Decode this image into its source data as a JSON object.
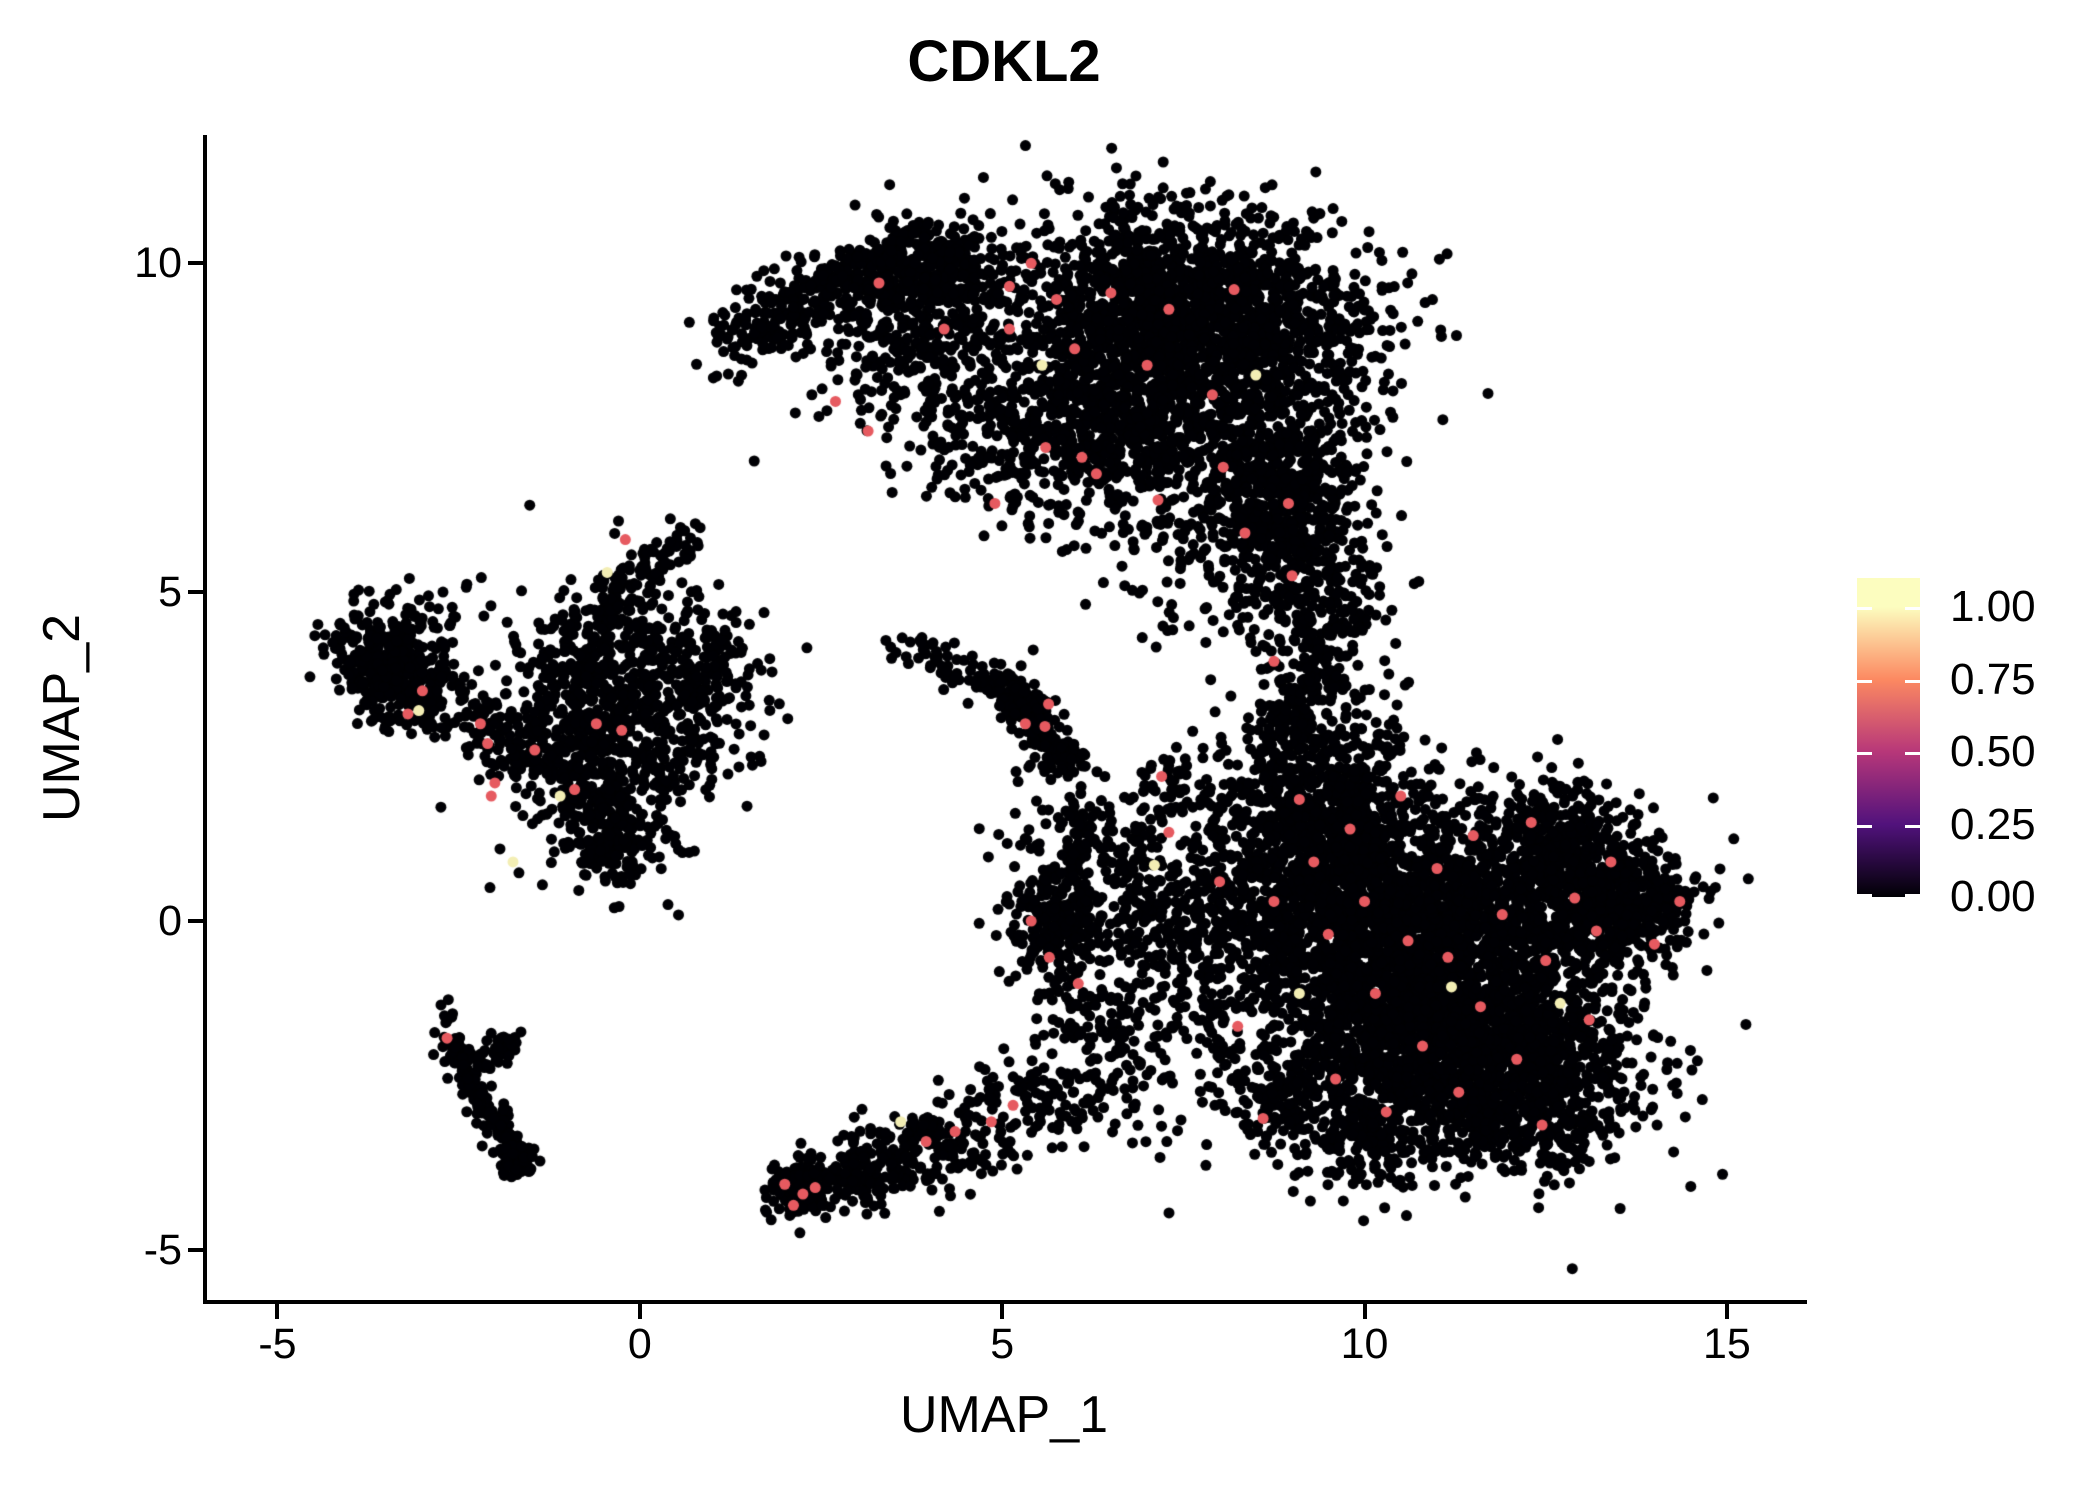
{
  "title": "CDKL2",
  "axes": {
    "x": {
      "label": "UMAP_1",
      "tick_labels": [
        "-5",
        "0",
        "5",
        "10",
        "15"
      ],
      "tick_values": [
        -5,
        0,
        5,
        10,
        15
      ],
      "range": [
        -6.0,
        16.05
      ]
    },
    "y": {
      "label": "UMAP_2",
      "tick_labels": [
        "-5",
        "0",
        "5",
        "10"
      ],
      "tick_values": [
        -5,
        0,
        5,
        10
      ],
      "range": [
        -5.79,
        11.95
      ]
    }
  },
  "legend": {
    "tick_labels": [
      "1.00",
      "0.75",
      "0.50",
      "0.25",
      "0.00"
    ],
    "tick_values": [
      1.0,
      0.75,
      0.5,
      0.25,
      0.0
    ],
    "bar_value_range": [
      0,
      1.1
    ],
    "colormap": "magma",
    "stops": [
      {
        "v": 0.0,
        "color": "#000004"
      },
      {
        "v": 0.25,
        "color": "#51127c"
      },
      {
        "v": 0.5,
        "color": "#b73779"
      },
      {
        "v": 0.75,
        "color": "#fc8961"
      },
      {
        "v": 1.0,
        "color": "#fcfdbf"
      }
    ]
  },
  "chart_data": {
    "type": "scatter",
    "title": "CDKL2",
    "xlabel": "UMAP_1",
    "ylabel": "UMAP_2",
    "xlim": [
      -6.0,
      16.05
    ],
    "ylim": [
      -5.79,
      11.95
    ],
    "grid": false,
    "legend_position": "right",
    "point_radius_px": 5.5,
    "base_color": "#000004",
    "seed": 42,
    "clusters": [
      {
        "id": "top-core-upper",
        "kind": "blob",
        "c": [
          7.6,
          9.3
        ],
        "sd": [
          1.25,
          0.8
        ],
        "rot": -8,
        "n": 1600
      },
      {
        "id": "top-core-lower",
        "kind": "blob",
        "c": [
          6.7,
          7.7
        ],
        "sd": [
          1.05,
          0.85
        ],
        "n": 1000
      },
      {
        "id": "top-right-lobe",
        "kind": "blob",
        "c": [
          8.8,
          6.9
        ],
        "sd": [
          0.65,
          0.9
        ],
        "n": 420
      },
      {
        "id": "top-left-lobe",
        "kind": "blob",
        "c": [
          4.1,
          9.5
        ],
        "sd": [
          0.65,
          0.55
        ],
        "n": 360
      },
      {
        "id": "top-arc-tail",
        "kind": "streak",
        "from": [
          1.15,
          8.65
        ],
        "to": [
          3.0,
          9.9
        ],
        "n": 230,
        "jitter": 0.28
      },
      {
        "id": "top-arc-join",
        "kind": "streak",
        "from": [
          2.95,
          9.85
        ],
        "to": [
          4.4,
          10.15
        ],
        "n": 190,
        "jitter": 0.3
      },
      {
        "id": "top-under-arc",
        "kind": "blob",
        "c": [
          3.6,
          8.3
        ],
        "sd": [
          0.65,
          0.6
        ],
        "n": 140
      },
      {
        "id": "top-under-arc2",
        "kind": "blob",
        "c": [
          4.7,
          7.5
        ],
        "sd": [
          0.55,
          0.65
        ],
        "n": 120
      },
      {
        "id": "arm-down",
        "kind": "streak",
        "from": [
          8.65,
          6.8
        ],
        "to": [
          9.35,
          4.3
        ],
        "n": 420,
        "jitter": 0.5
      },
      {
        "id": "arm-chain",
        "kind": "streak",
        "from": [
          9.35,
          4.25
        ],
        "to": [
          9.1,
          2.9
        ],
        "n": 110,
        "jitter": 0.3
      },
      {
        "id": "gap-sparse",
        "kind": "blob",
        "c": [
          7.7,
          5.3
        ],
        "sd": [
          0.75,
          0.75
        ],
        "n": 70
      },
      {
        "id": "arm-side-sparse",
        "kind": "blob",
        "c": [
          10.0,
          5.1
        ],
        "sd": [
          0.3,
          0.4
        ],
        "n": 25
      },
      {
        "id": "left-blob",
        "kind": "blob",
        "c": [
          -3.35,
          3.95
        ],
        "sd": [
          0.42,
          0.45
        ],
        "n": 300
      },
      {
        "id": "left-blob-streak",
        "kind": "streak",
        "from": [
          -4.15,
          4.35
        ],
        "to": [
          -2.6,
          3.05
        ],
        "n": 130,
        "jitter": 0.27
      },
      {
        "id": "leftmain-core",
        "kind": "blob",
        "c": [
          -0.35,
          2.6
        ],
        "sd": [
          0.6,
          0.8
        ],
        "n": 480
      },
      {
        "id": "leftmain-right-lobe",
        "kind": "blob",
        "c": [
          0.55,
          3.9
        ],
        "sd": [
          0.55,
          0.6
        ],
        "n": 260
      },
      {
        "id": "leftmain-up-arc",
        "kind": "streak",
        "from": [
          -1.15,
          3.5
        ],
        "to": [
          -0.35,
          4.9
        ],
        "n": 140,
        "jitter": 0.3
      },
      {
        "id": "leftmain-top-chain",
        "kind": "streak",
        "from": [
          -0.35,
          4.9
        ],
        "to": [
          0.62,
          5.85
        ],
        "n": 80,
        "jitter": 0.18
      },
      {
        "id": "leftmain-bridge",
        "kind": "streak",
        "from": [
          -2.35,
          3.1
        ],
        "to": [
          -1.1,
          2.45
        ],
        "n": 140,
        "jitter": 0.33
      },
      {
        "id": "leftmain-tail",
        "kind": "streak",
        "from": [
          -0.75,
          1.9
        ],
        "to": [
          -0.25,
          0.85
        ],
        "n": 150,
        "jitter": 0.28
      },
      {
        "id": "leftmain-halo",
        "kind": "blob",
        "c": [
          -0.4,
          3.1
        ],
        "sd": [
          1.15,
          1.15
        ],
        "n": 170
      },
      {
        "id": "mid-streak",
        "kind": "streak",
        "from": [
          5.0,
          3.6
        ],
        "to": [
          6.0,
          2.3
        ],
        "n": 200,
        "jitter": 0.17
      },
      {
        "id": "mid-streak-knot",
        "kind": "blob",
        "c": [
          5.35,
          3.25
        ],
        "sd": [
          0.17,
          0.17
        ],
        "n": 70
      },
      {
        "id": "mid-bridge",
        "kind": "streak",
        "from": [
          3.5,
          4.2
        ],
        "to": [
          4.9,
          3.65
        ],
        "n": 55,
        "jitter": 0.14
      },
      {
        "id": "mid-right-group",
        "kind": "blob",
        "c": [
          7.3,
          2.1
        ],
        "sd": [
          0.25,
          0.3
        ],
        "n": 45
      },
      {
        "id": "mid-blob",
        "kind": "blob",
        "c": [
          5.75,
          -0.1
        ],
        "sd": [
          0.32,
          0.45
        ],
        "n": 240
      },
      {
        "id": "mid-blob-uptail",
        "kind": "streak",
        "from": [
          5.95,
          0.6
        ],
        "to": [
          6.15,
          1.7
        ],
        "n": 45,
        "jitter": 0.15
      },
      {
        "id": "mid-blob-halo",
        "kind": "blob",
        "c": [
          6.6,
          -0.1
        ],
        "sd": [
          0.5,
          0.8
        ],
        "n": 90
      },
      {
        "id": "mid-upper-sparse",
        "kind": "blob",
        "c": [
          7.1,
          0.6
        ],
        "sd": [
          0.5,
          0.5
        ],
        "n": 70
      },
      {
        "id": "mid-trail-up",
        "kind": "blob",
        "c": [
          5.8,
          1.4
        ],
        "sd": [
          0.4,
          0.5
        ],
        "n": 40
      },
      {
        "id": "mid-trail-down",
        "kind": "blob",
        "c": [
          6.3,
          -1.6
        ],
        "sd": [
          0.35,
          0.5
        ],
        "n": 50
      },
      {
        "id": "bottom-arm",
        "kind": "streak",
        "from": [
          2.05,
          -4.25
        ],
        "to": [
          6.3,
          -2.4
        ],
        "n": 420,
        "jitter": 0.16,
        "jitter_end": 0.55
      },
      {
        "id": "bottom-arm-knot",
        "kind": "blob",
        "c": [
          2.2,
          -4.05
        ],
        "sd": [
          0.22,
          0.22
        ],
        "n": 100
      },
      {
        "id": "bottom-arm-bump",
        "kind": "blob",
        "c": [
          3.0,
          -3.9
        ],
        "sd": [
          0.3,
          0.25
        ],
        "n": 60
      },
      {
        "id": "botleft-streak",
        "kind": "streak",
        "from": [
          -2.65,
          -1.78
        ],
        "to": [
          -1.63,
          -3.72
        ],
        "n": 160,
        "jitter": 0.11
      },
      {
        "id": "botleft-branch",
        "kind": "streak",
        "from": [
          -2.22,
          -2.2
        ],
        "to": [
          -1.72,
          -1.72
        ],
        "n": 40,
        "jitter": 0.09
      },
      {
        "id": "botleft-knot",
        "kind": "blob",
        "c": [
          -1.73,
          -3.62
        ],
        "sd": [
          0.14,
          0.12
        ],
        "n": 40
      },
      {
        "id": "botleft-chain",
        "kind": "streak",
        "from": [
          -2.64,
          -1.2
        ],
        "to": [
          -2.66,
          -1.6
        ],
        "n": 8,
        "jitter": 0.05
      },
      {
        "id": "right-core1",
        "kind": "blob",
        "c": [
          10.6,
          -0.6
        ],
        "sd": [
          1.35,
          1.05
        ],
        "n": 2100
      },
      {
        "id": "right-core2",
        "kind": "blob",
        "c": [
          11.6,
          -2.1
        ],
        "sd": [
          1.05,
          0.75
        ],
        "n": 1300
      },
      {
        "id": "right-upper",
        "kind": "blob",
        "c": [
          9.6,
          0.9
        ],
        "sd": [
          0.95,
          0.85
        ],
        "n": 850
      },
      {
        "id": "right-east",
        "kind": "blob",
        "c": [
          12.6,
          0.25
        ],
        "sd": [
          0.85,
          0.7
        ],
        "n": 650
      },
      {
        "id": "right-tip",
        "kind": "streak",
        "from": [
          13.3,
          0.1
        ],
        "to": [
          14.42,
          0.42
        ],
        "n": 80,
        "jitter": 0.22
      },
      {
        "id": "right-neck",
        "kind": "blob",
        "c": [
          9.35,
          2.2
        ],
        "sd": [
          0.6,
          0.75
        ],
        "n": 400
      },
      {
        "id": "right-west-sparse",
        "kind": "blob",
        "c": [
          7.7,
          -0.5
        ],
        "sd": [
          0.85,
          1.2
        ],
        "n": 300
      },
      {
        "id": "right-south1",
        "kind": "blob",
        "c": [
          9.9,
          -3.25
        ],
        "sd": [
          0.6,
          0.45
        ],
        "n": 200
      },
      {
        "id": "right-south2",
        "kind": "blob",
        "c": [
          8.95,
          -2.6
        ],
        "sd": [
          0.45,
          0.4
        ],
        "n": 110
      },
      {
        "id": "right-southeast",
        "kind": "blob",
        "c": [
          12.3,
          -3.0
        ],
        "sd": [
          0.75,
          0.4
        ],
        "n": 220
      },
      {
        "id": "right-northeast",
        "kind": "blob",
        "c": [
          12.75,
          1.4
        ],
        "sd": [
          0.5,
          0.45
        ],
        "n": 180
      },
      {
        "id": "right-east2",
        "kind": "blob",
        "c": [
          13.6,
          0.3
        ],
        "sd": [
          0.4,
          0.45
        ],
        "n": 160
      }
    ],
    "highlights": {
      "mid": {
        "color": "#e65a60",
        "value": 0.7,
        "points": [
          [
            3.3,
            9.7
          ],
          [
            4.2,
            9.0
          ],
          [
            5.4,
            10.0
          ],
          [
            5.1,
            9.65
          ],
          [
            5.75,
            9.45
          ],
          [
            6.5,
            9.55
          ],
          [
            7.3,
            9.3
          ],
          [
            8.2,
            9.6
          ],
          [
            5.1,
            9.0
          ],
          [
            6.0,
            8.7
          ],
          [
            7.0,
            8.45
          ],
          [
            7.9,
            8.0
          ],
          [
            6.3,
            6.8
          ],
          [
            5.6,
            7.2
          ],
          [
            4.9,
            6.35
          ],
          [
            6.1,
            7.05
          ],
          [
            7.15,
            6.4
          ],
          [
            8.05,
            6.9
          ],
          [
            2.7,
            7.9
          ],
          [
            3.15,
            7.45
          ],
          [
            8.35,
            5.9
          ],
          [
            8.95,
            6.35
          ],
          [
            9.0,
            5.25
          ],
          [
            8.75,
            3.95
          ],
          [
            -3.0,
            3.5
          ],
          [
            -3.2,
            3.15
          ],
          [
            -2.2,
            3.0
          ],
          [
            -2.1,
            2.7
          ],
          [
            -2.0,
            2.1
          ],
          [
            -1.45,
            2.6
          ],
          [
            -0.9,
            2.0
          ],
          [
            -0.6,
            3.0
          ],
          [
            -0.25,
            2.9
          ],
          [
            -0.2,
            5.8
          ],
          [
            -2.05,
            1.9
          ],
          [
            5.64,
            3.3
          ],
          [
            5.32,
            3.0
          ],
          [
            5.59,
            2.96
          ],
          [
            7.2,
            2.2
          ],
          [
            5.4,
            0.0
          ],
          [
            5.65,
            -0.55
          ],
          [
            6.05,
            -0.95
          ],
          [
            2.0,
            -4.0
          ],
          [
            2.25,
            -4.15
          ],
          [
            2.12,
            -4.32
          ],
          [
            2.42,
            -4.05
          ],
          [
            3.95,
            -3.35
          ],
          [
            4.35,
            -3.2
          ],
          [
            4.85,
            -3.05
          ],
          [
            5.15,
            -2.8
          ],
          [
            -2.66,
            -1.78
          ],
          [
            7.3,
            1.35
          ],
          [
            8.0,
            0.6
          ],
          [
            8.25,
            -1.6
          ],
          [
            8.6,
            -3.0
          ],
          [
            8.75,
            0.3
          ],
          [
            9.1,
            1.85
          ],
          [
            9.3,
            0.9
          ],
          [
            9.5,
            -0.2
          ],
          [
            9.6,
            -2.4
          ],
          [
            9.8,
            1.4
          ],
          [
            10.0,
            0.3
          ],
          [
            10.15,
            -1.1
          ],
          [
            10.3,
            -2.9
          ],
          [
            10.5,
            1.9
          ],
          [
            10.6,
            -0.3
          ],
          [
            10.8,
            -1.9
          ],
          [
            11.0,
            0.8
          ],
          [
            11.15,
            -0.55
          ],
          [
            11.3,
            -2.6
          ],
          [
            11.5,
            1.3
          ],
          [
            11.6,
            -1.3
          ],
          [
            11.9,
            0.1
          ],
          [
            12.1,
            -2.1
          ],
          [
            12.3,
            1.5
          ],
          [
            12.5,
            -0.6
          ],
          [
            12.9,
            0.35
          ],
          [
            13.1,
            -1.5
          ],
          [
            13.4,
            0.9
          ],
          [
            14.35,
            0.3
          ],
          [
            12.45,
            -3.1
          ],
          [
            14.0,
            -0.35
          ],
          [
            13.2,
            -0.15
          ]
        ]
      },
      "high": {
        "color": "#f3eeb4",
        "value": 1.0,
        "points": [
          [
            5.55,
            8.45
          ],
          [
            8.5,
            8.3
          ],
          [
            -3.05,
            3.2
          ],
          [
            -1.1,
            1.9
          ],
          [
            -1.75,
            0.9
          ],
          [
            -0.45,
            5.3
          ],
          [
            7.1,
            0.85
          ],
          [
            9.1,
            -1.1
          ],
          [
            11.2,
            -1.0
          ],
          [
            12.7,
            -1.25
          ],
          [
            3.6,
            -3.05
          ]
        ]
      }
    }
  }
}
